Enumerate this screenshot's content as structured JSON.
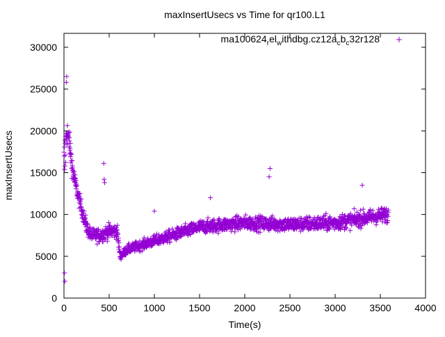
{
  "chart_data": {
    "type": "scatter",
    "title": "maxInsertUsecs vs Time for qr100.L1",
    "xlabel": "Time(s)",
    "ylabel": "maxInsertUsecs",
    "xlim": [
      0,
      4000
    ],
    "ylim": [
      0,
      32000
    ],
    "xticks": [
      0,
      500,
      1000,
      1500,
      2000,
      2500,
      3000,
      3500,
      4000
    ],
    "yticks": [
      0,
      5000,
      10000,
      15000,
      20000,
      25000,
      30000
    ],
    "grid": false,
    "legend_position": "top-right",
    "series": [
      {
        "name": "ma100624_rel_withdbg.cz12a_c_b_c32r128",
        "legend_label": "ma100624",
        "legend_parts": [
          [
            "ma100624",
            ""
          ],
          [
            "el",
            "r"
          ],
          [
            "ithdbg.cz12a",
            "w"
          ],
          [
            "b",
            "c"
          ],
          [
            "32r128",
            "c"
          ]
        ],
        "color": "#9400D3",
        "marker": "+",
        "trend_points": [
          [
            0,
            15000,
            8000
          ],
          [
            30,
            20000,
            3000
          ],
          [
            60,
            18500,
            2500
          ],
          [
            100,
            15000,
            2000
          ],
          [
            150,
            12500,
            1500
          ],
          [
            200,
            10500,
            1500
          ],
          [
            250,
            8500,
            1500
          ],
          [
            300,
            7500,
            1300
          ],
          [
            400,
            7500,
            1400
          ],
          [
            500,
            8000,
            1400
          ],
          [
            590,
            8000,
            1400
          ],
          [
            620,
            5000,
            700
          ],
          [
            700,
            5800,
            900
          ],
          [
            900,
            6500,
            1000
          ],
          [
            1200,
            7500,
            1200
          ],
          [
            1500,
            8500,
            1300
          ],
          [
            2000,
            9000,
            1400
          ],
          [
            2500,
            8800,
            1400
          ],
          [
            3000,
            9000,
            1500
          ],
          [
            3590,
            10000,
            1500
          ]
        ],
        "outliers": [
          [
            440,
            16100
          ],
          [
            445,
            14200
          ],
          [
            450,
            13800
          ],
          [
            1000,
            10400
          ],
          [
            2280,
            15500
          ],
          [
            2270,
            14500
          ],
          [
            3300,
            13500
          ],
          [
            1620,
            12000
          ],
          [
            30,
            26500
          ],
          [
            25,
            25800
          ],
          [
            10,
            2000
          ],
          [
            5,
            3000
          ]
        ]
      }
    ]
  }
}
